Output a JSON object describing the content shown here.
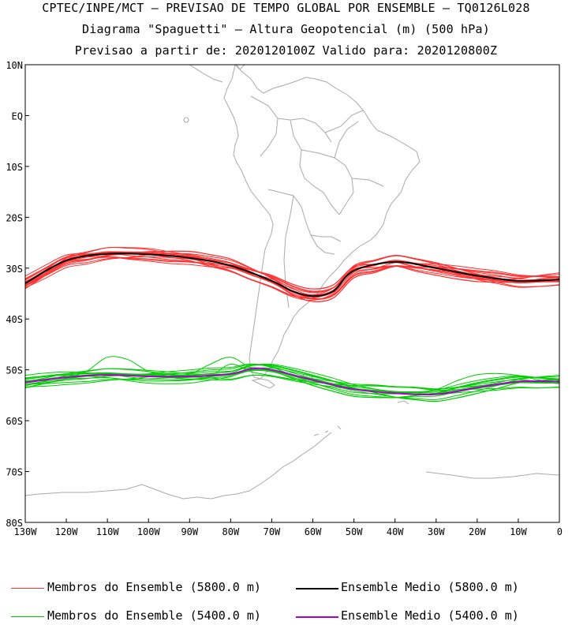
{
  "titles": {
    "line1": "CPTEC/INPE/MCT — PREVISAO DE TEMPO GLOBAL POR ENSEMBLE — TQ0126L028",
    "line2": "Diagrama \"Spaguetti\" — Altura Geopotencial (m) (500 hPa)",
    "line3": "Previsao a partir de: 2020120100Z  Valido para: 2020120800Z"
  },
  "axes": {
    "lat_labels": [
      "10N",
      "EQ",
      "10S",
      "20S",
      "30S",
      "40S",
      "50S",
      "60S",
      "70S",
      "80S"
    ],
    "lat_values": [
      10,
      0,
      -10,
      -20,
      -30,
      -40,
      -50,
      -60,
      -70,
      -80
    ],
    "lon_labels": [
      "130W",
      "120W",
      "110W",
      "100W",
      "90W",
      "80W",
      "70W",
      "60W",
      "50W",
      "40W",
      "30W",
      "20W",
      "10W",
      "0"
    ],
    "lon_values": [
      -130,
      -120,
      -110,
      -100,
      -90,
      -80,
      -70,
      -60,
      -50,
      -40,
      -30,
      -20,
      -10,
      0
    ]
  },
  "legend": {
    "members_5800": "Membros do Ensemble (5800.0 m)",
    "mean_5800": "Ensemble Medio (5800.0 m)",
    "members_5400": "Membros do Ensemble (5400.0 m)",
    "mean_5400": "Ensemble Medio (5400.0 m)"
  },
  "colors": {
    "members_5800": "#ff3030",
    "mean_5800": "#000000",
    "members_5400": "#00cc00",
    "mean_5400": "#aa00cc",
    "coast": "#a9a9a9"
  },
  "chart_data": {
    "type": "line",
    "xlim": [
      -130,
      0
    ],
    "ylim": [
      -80,
      10
    ],
    "mean_5800": {
      "x": [
        -130,
        -120,
        -110,
        -100,
        -90,
        -80,
        -70,
        -65,
        -60,
        -55,
        -50,
        -40,
        -30,
        -20,
        -10,
        0
      ],
      "y": [
        -33,
        -28.5,
        -27.2,
        -27.3,
        -28,
        -29.5,
        -32.5,
        -34.5,
        -35.5,
        -34.5,
        -30.5,
        -28.8,
        -30,
        -31.5,
        -32.5,
        -32.2
      ]
    },
    "mean_5400": {
      "x": [
        -130,
        -120,
        -110,
        -100,
        -90,
        -80,
        -75,
        -70,
        -60,
        -50,
        -40,
        -30,
        -20,
        -10,
        0
      ],
      "y": [
        -52.5,
        -51.5,
        -51,
        -51.3,
        -51.3,
        -50.8,
        -49.8,
        -50,
        -52,
        -53.8,
        -54.6,
        -54.8,
        -53.5,
        -52.3,
        -52.3
      ]
    }
  }
}
